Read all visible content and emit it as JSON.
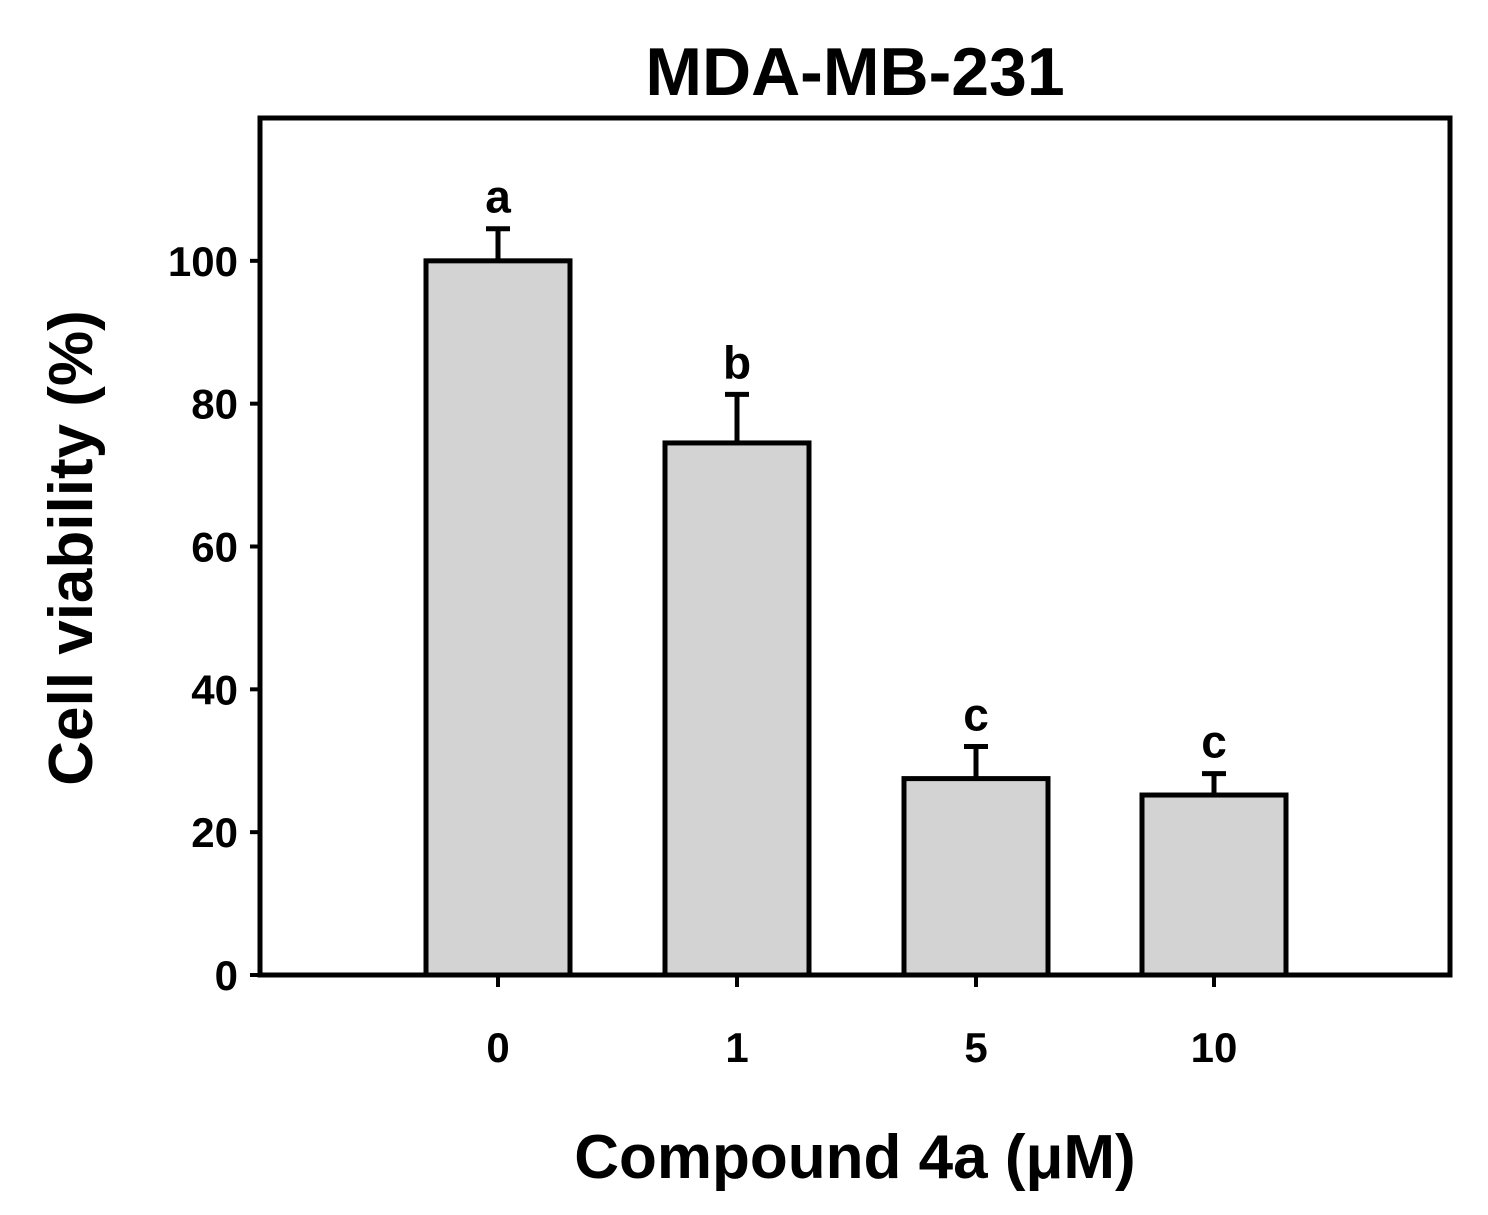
{
  "chart_data": {
    "type": "bar",
    "title": "MDA-MB-231",
    "xlabel": "Compound 4a (μM)",
    "ylabel": "Cell viability (%)",
    "categories": [
      "0",
      "1",
      "5",
      "10"
    ],
    "values": [
      100,
      74.5,
      27.5,
      25.2
    ],
    "errors": [
      4.5,
      6.8,
      4.5,
      3.0
    ],
    "significance_labels": [
      "a",
      "b",
      "c",
      "c"
    ],
    "ylim": [
      0,
      120
    ],
    "yticks": [
      0,
      20,
      40,
      60,
      80,
      100
    ],
    "grid": false,
    "bar_color": "#d3d3d3",
    "edge_color": "#000000"
  }
}
